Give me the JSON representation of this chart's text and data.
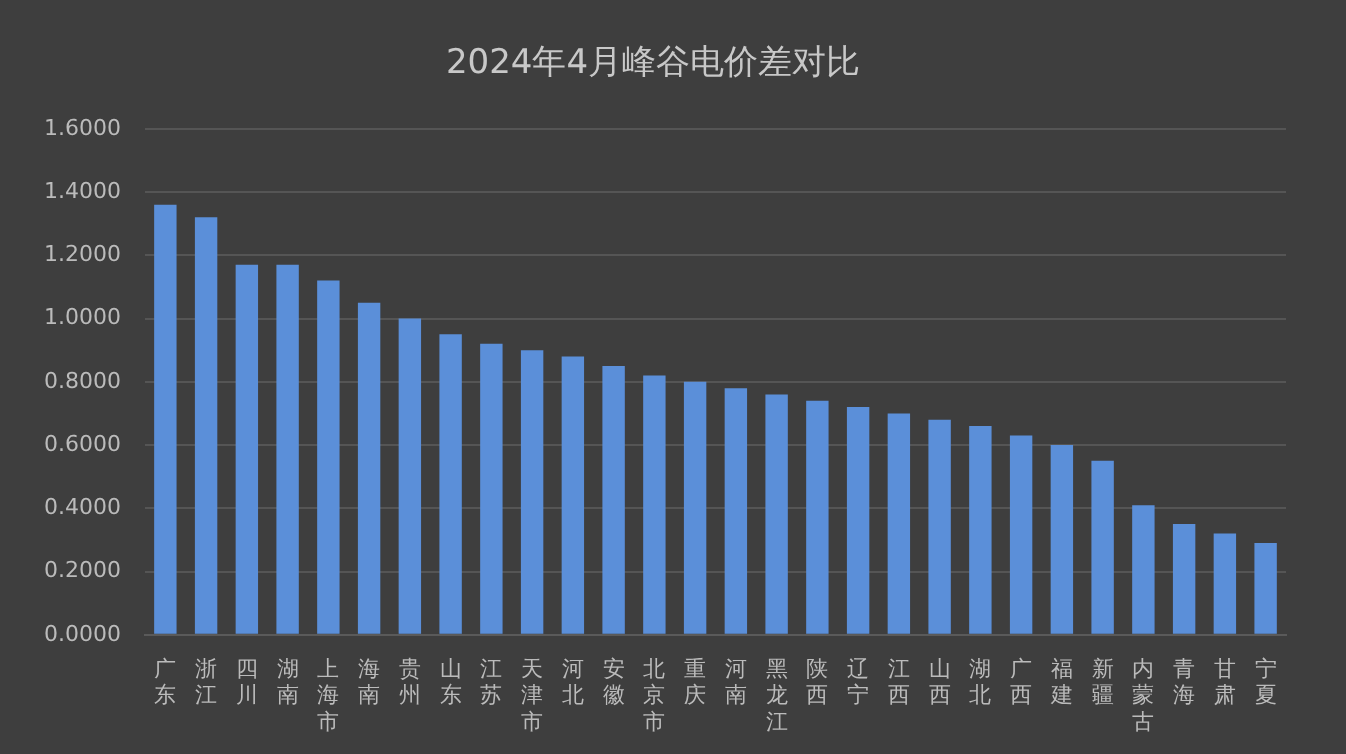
{
  "chart_data": {
    "type": "bar",
    "title": "2024年4月峰谷电价差对比",
    "categories": [
      "广东",
      "浙江",
      "四川",
      "湖南",
      "上海市",
      "海南",
      "贵州",
      "山东",
      "江苏",
      "天津市",
      "河北",
      "安徽",
      "北京市",
      "重庆",
      "河南",
      "黑龙江",
      "陕西",
      "辽宁",
      "江西",
      "山西",
      "湖北",
      "广西",
      "福建",
      "新疆",
      "内蒙古",
      "青海",
      "甘肃",
      "宁夏"
    ],
    "values": [
      1.36,
      1.32,
      1.17,
      1.17,
      1.12,
      1.05,
      1.0,
      0.95,
      0.92,
      0.9,
      0.88,
      0.85,
      0.82,
      0.8,
      0.78,
      0.76,
      0.74,
      0.72,
      0.7,
      0.68,
      0.66,
      0.63,
      0.6,
      0.55,
      0.41,
      0.35,
      0.32,
      0.29
    ],
    "color": "#5b8fd9",
    "ylim": [
      0,
      1.6
    ],
    "yticks": [
      {
        "value": 0,
        "label": "0.0000"
      },
      {
        "value": 0.2,
        "label": "0.2000"
      },
      {
        "value": 0.4,
        "label": "0.4000"
      },
      {
        "value": 0.6,
        "label": "0.6000"
      },
      {
        "value": 0.8,
        "label": "0.8000"
      },
      {
        "value": 1.0,
        "label": "1.0000"
      },
      {
        "value": 1.2,
        "label": "1.2000"
      },
      {
        "value": 1.4,
        "label": "1.4000"
      },
      {
        "value": 1.6,
        "label": "1.6000"
      }
    ],
    "grid": "y",
    "legend": false
  }
}
